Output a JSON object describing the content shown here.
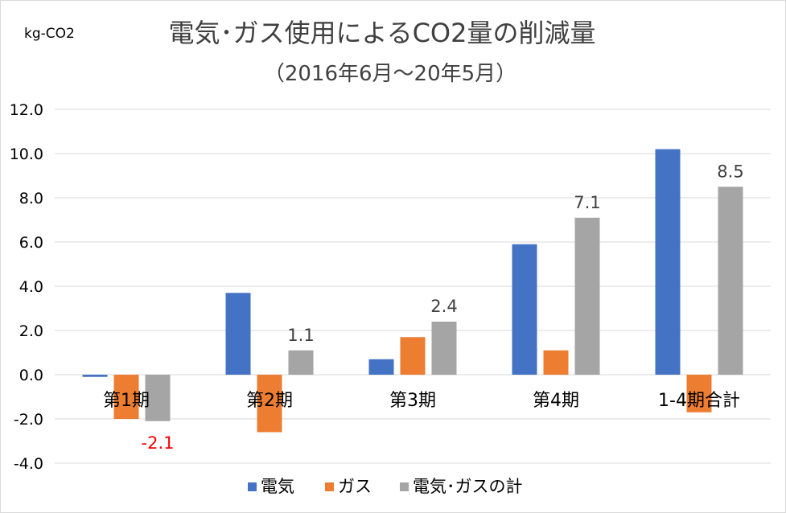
{
  "chart_data": {
    "type": "bar",
    "title": "電気･ガス使用によるCO2量の削減量",
    "subtitle": "（2016年6月～20年5月）",
    "unit_label": "kg-CO2",
    "categories": [
      "第1期",
      "第2期",
      "第3期",
      "第4期",
      "1-4期合計"
    ],
    "series": [
      {
        "name": "電気",
        "color": "#4472C4",
        "values": [
          -0.1,
          3.7,
          0.7,
          5.9,
          10.2
        ]
      },
      {
        "name": "ガス",
        "color": "#ED7D31",
        "values": [
          -2.0,
          -2.6,
          1.7,
          1.1,
          -1.7
        ]
      },
      {
        "name": "電気･ガスの計",
        "color": "#A5A5A5",
        "values": [
          -2.1,
          1.1,
          2.4,
          7.1,
          8.5
        ]
      }
    ],
    "data_labels": [
      {
        "text": "-2.1",
        "color": "#FF0000"
      },
      {
        "text": "1.1",
        "color": "#404040"
      },
      {
        "text": "2.4",
        "color": "#404040"
      },
      {
        "text": "7.1",
        "color": "#404040"
      },
      {
        "text": "8.5",
        "color": "#404040"
      }
    ],
    "y_ticks": [
      "12.0",
      "10.0",
      "8.0",
      "6.0",
      "4.0",
      "2.0",
      "0.0",
      "-2.0",
      "-4.0"
    ],
    "ylim": [
      -4,
      12
    ],
    "grid": true,
    "legend_position": "bottom"
  }
}
